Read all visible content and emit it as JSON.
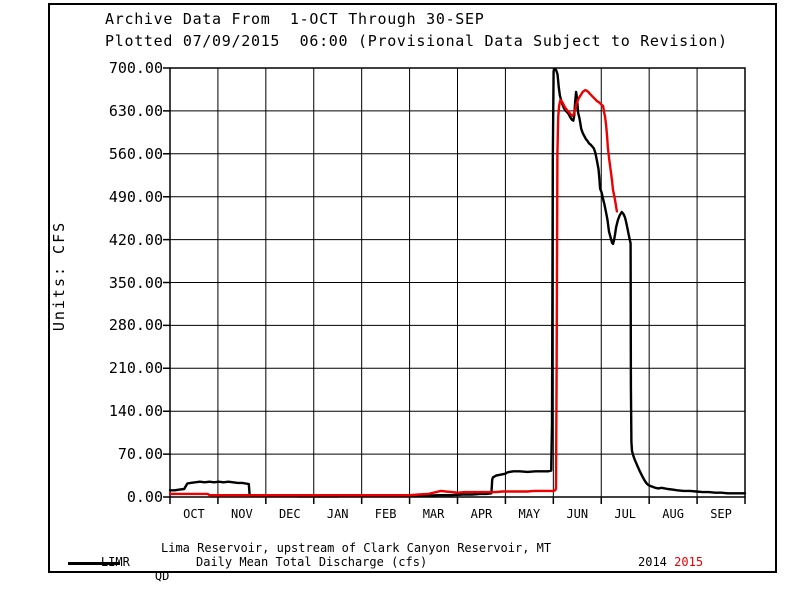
{
  "window": {
    "background": "#ffffff",
    "border_color": "#000000"
  },
  "header": {
    "title_line1": "Archive Data From  1-OCT Through 30-SEP",
    "title_line2": "Plotted 07/09/2015  06:00 (Provisional Data Subject to Revision)"
  },
  "chart_data": {
    "type": "line",
    "title": "Archive Data From 1-OCT Through 30-SEP",
    "subtitle": "Plotted 07/09/2015 06:00 (Provisional Data Subject to Revision)",
    "ylabel": "Units: CFS",
    "ylim": [
      0,
      700
    ],
    "y_tick_step": 70,
    "y_ticks": [
      "700.00",
      "630.00",
      "560.00",
      "490.00",
      "420.00",
      "350.00",
      "280.00",
      "210.00",
      "140.00",
      "70.00",
      "0.00"
    ],
    "x_months": [
      "OCT",
      "NOV",
      "DEC",
      "JAN",
      "FEB",
      "MAR",
      "APR",
      "MAY",
      "JUN",
      "JUL",
      "AUG",
      "SEP"
    ],
    "x_range_days": [
      0,
      365
    ],
    "grid": true,
    "axis_color": "#000000",
    "series": [
      {
        "name": "QD 2014",
        "label": "2014",
        "color": "#000000",
        "points": [
          [
            0,
            11
          ],
          [
            3,
            11
          ],
          [
            6,
            12
          ],
          [
            9,
            13
          ],
          [
            11,
            22
          ],
          [
            13,
            23
          ],
          [
            16,
            24
          ],
          [
            19,
            25
          ],
          [
            22,
            24
          ],
          [
            25,
            25
          ],
          [
            28,
            24
          ],
          [
            31,
            25
          ],
          [
            34,
            24
          ],
          [
            37,
            25
          ],
          [
            40,
            24
          ],
          [
            43,
            23
          ],
          [
            46,
            23
          ],
          [
            48,
            22
          ],
          [
            50,
            21
          ],
          [
            50.5,
            4
          ],
          [
            52,
            2
          ],
          [
            58,
            2
          ],
          [
            66,
            2
          ],
          [
            74,
            2
          ],
          [
            82,
            1
          ],
          [
            90,
            1
          ],
          [
            98,
            1
          ],
          [
            106,
            1
          ],
          [
            114,
            2
          ],
          [
            122,
            2
          ],
          [
            130,
            2
          ],
          [
            138,
            2
          ],
          [
            146,
            2
          ],
          [
            154,
            2
          ],
          [
            162,
            2
          ],
          [
            170,
            3
          ],
          [
            178,
            3
          ],
          [
            186,
            4
          ],
          [
            192,
            4
          ],
          [
            197,
            5
          ],
          [
            201,
            5
          ],
          [
            204,
            6
          ],
          [
            204.5,
            28
          ],
          [
            205,
            32
          ],
          [
            207,
            35
          ],
          [
            209,
            36
          ],
          [
            211,
            37
          ],
          [
            213,
            38
          ],
          [
            214,
            40
          ],
          [
            215.5,
            41
          ],
          [
            218,
            42
          ],
          [
            222,
            42
          ],
          [
            227,
            41
          ],
          [
            232,
            42
          ],
          [
            237,
            42
          ],
          [
            240,
            42
          ],
          [
            242,
            43
          ],
          [
            242.5,
            120
          ],
          [
            243,
            550
          ],
          [
            243.5,
            695
          ],
          [
            244,
            698
          ],
          [
            245,
            697
          ],
          [
            246,
            690
          ],
          [
            246.8,
            668
          ],
          [
            247.5,
            655
          ],
          [
            248.2,
            648
          ],
          [
            249,
            641
          ],
          [
            250,
            635
          ],
          [
            251,
            631
          ],
          [
            252,
            628
          ],
          [
            253,
            625
          ],
          [
            254,
            620
          ],
          [
            255,
            616
          ],
          [
            256,
            614
          ],
          [
            256.6,
            622
          ],
          [
            257.2,
            645
          ],
          [
            257.8,
            661
          ],
          [
            258.4,
            650
          ],
          [
            259,
            628
          ],
          [
            260,
            617
          ],
          [
            261,
            601
          ],
          [
            262,
            594
          ],
          [
            263,
            589
          ],
          [
            264,
            584
          ],
          [
            265,
            581
          ],
          [
            266,
            577
          ],
          [
            267,
            575
          ],
          [
            268,
            572
          ],
          [
            269,
            569
          ],
          [
            270,
            562
          ],
          [
            271,
            549
          ],
          [
            272,
            535
          ],
          [
            272.6,
            519
          ],
          [
            273,
            503
          ],
          [
            274,
            497
          ],
          [
            274.9,
            486
          ],
          [
            275.8,
            477
          ],
          [
            276.8,
            464
          ],
          [
            277.7,
            452
          ],
          [
            278.7,
            433
          ],
          [
            279.6,
            424
          ],
          [
            280.6,
            415
          ],
          [
            281.2,
            413
          ],
          [
            281.8,
            418
          ],
          [
            282.5,
            428
          ],
          [
            283.2,
            440
          ],
          [
            284.3,
            452
          ],
          [
            285.5,
            460
          ],
          [
            286.8,
            465
          ],
          [
            287.8,
            462
          ],
          [
            288.8,
            456
          ],
          [
            289.6,
            448
          ],
          [
            290.4,
            438
          ],
          [
            291.2,
            428
          ],
          [
            292,
            418
          ],
          [
            292.4,
            414
          ],
          [
            292.6,
            180
          ],
          [
            292.9,
            90
          ],
          [
            293.3,
            75
          ],
          [
            294,
            68
          ],
          [
            295,
            61
          ],
          [
            296,
            55
          ],
          [
            297,
            49
          ],
          [
            298,
            43
          ],
          [
            299,
            38
          ],
          [
            300,
            33
          ],
          [
            301,
            28
          ],
          [
            302,
            24
          ],
          [
            303,
            21
          ],
          [
            304,
            19
          ],
          [
            306,
            17
          ],
          [
            308,
            15
          ],
          [
            310,
            14
          ],
          [
            312,
            15
          ],
          [
            314,
            14
          ],
          [
            316,
            13
          ],
          [
            319,
            12
          ],
          [
            322,
            11
          ],
          [
            326,
            10
          ],
          [
            330,
            10
          ],
          [
            334,
            9
          ],
          [
            338,
            8
          ],
          [
            342,
            8
          ],
          [
            346,
            7
          ],
          [
            350,
            7
          ],
          [
            354,
            6
          ],
          [
            358,
            6
          ],
          [
            362,
            6
          ],
          [
            365,
            6
          ]
        ]
      },
      {
        "name": "QD 2015",
        "label": "2015",
        "color": "#ee0000",
        "points": [
          [
            0,
            5
          ],
          [
            4,
            5
          ],
          [
            8,
            5
          ],
          [
            12,
            5
          ],
          [
            16,
            5
          ],
          [
            20,
            5
          ],
          [
            24,
            5
          ],
          [
            25,
            3
          ],
          [
            32,
            3
          ],
          [
            40,
            3
          ],
          [
            48,
            3
          ],
          [
            56,
            3
          ],
          [
            64,
            3
          ],
          [
            72,
            3
          ],
          [
            80,
            3
          ],
          [
            88,
            3
          ],
          [
            96,
            3
          ],
          [
            104,
            3
          ],
          [
            112,
            3
          ],
          [
            120,
            3
          ],
          [
            128,
            3
          ],
          [
            136,
            3
          ],
          [
            144,
            3
          ],
          [
            152,
            3
          ],
          [
            158,
            4
          ],
          [
            164,
            5
          ],
          [
            169,
            8
          ],
          [
            172,
            10
          ],
          [
            175,
            9
          ],
          [
            179,
            8
          ],
          [
            183,
            7
          ],
          [
            187,
            8
          ],
          [
            191,
            8
          ],
          [
            195,
            8
          ],
          [
            199,
            8
          ],
          [
            203,
            8
          ],
          [
            207,
            8
          ],
          [
            211,
            9
          ],
          [
            215,
            9
          ],
          [
            219,
            9
          ],
          [
            223,
            9
          ],
          [
            227,
            9
          ],
          [
            231,
            10
          ],
          [
            235,
            10
          ],
          [
            239,
            10
          ],
          [
            243,
            10
          ],
          [
            244.5,
            11
          ],
          [
            245,
            14
          ],
          [
            245.4,
            200
          ],
          [
            245.9,
            560
          ],
          [
            246.4,
            620
          ],
          [
            247,
            638
          ],
          [
            247.8,
            648
          ],
          [
            248.6,
            646
          ],
          [
            249.5,
            642
          ],
          [
            250.5,
            637
          ],
          [
            251.5,
            633
          ],
          [
            252.5,
            630
          ],
          [
            253.5,
            627
          ],
          [
            254.5,
            624
          ],
          [
            255.2,
            622
          ],
          [
            256,
            623
          ],
          [
            257,
            631
          ],
          [
            258,
            641
          ],
          [
            259,
            648
          ],
          [
            260,
            653
          ],
          [
            261,
            657
          ],
          [
            262,
            661
          ],
          [
            263,
            663
          ],
          [
            263.6,
            664
          ],
          [
            264.5,
            663
          ],
          [
            265.5,
            661
          ],
          [
            266.5,
            658
          ],
          [
            268,
            654
          ],
          [
            269.5,
            650
          ],
          [
            271,
            646
          ],
          [
            272.3,
            644
          ],
          [
            273.5,
            641
          ],
          [
            274.9,
            638
          ],
          [
            275.6,
            627
          ],
          [
            276.2,
            620
          ],
          [
            276.8,
            607
          ],
          [
            277.4,
            590
          ],
          [
            278,
            570
          ],
          [
            278.6,
            555
          ],
          [
            279.3,
            541
          ],
          [
            280,
            528
          ],
          [
            280.6,
            517
          ],
          [
            281.2,
            501
          ],
          [
            282,
            492
          ],
          [
            282.8,
            480
          ],
          [
            283.7,
            466
          ]
        ]
      }
    ]
  },
  "legend": {
    "site_code": "LIMR",
    "site_name": "Lima Reservoir, upstream of Clark Canyon Reservoir, MT",
    "series_code": "QD",
    "series_desc": "Daily Mean Total Discharge (cfs)",
    "year_black": "2014",
    "year_red": "2015",
    "year_red_color": "#ee0000"
  }
}
